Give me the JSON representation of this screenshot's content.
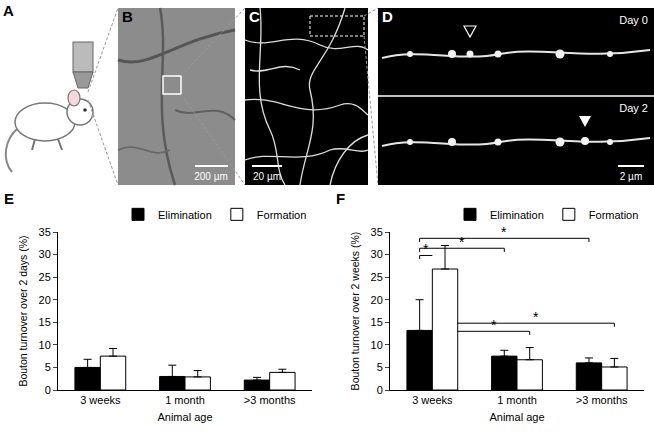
{
  "panels": {
    "A": {
      "label": "A"
    },
    "B": {
      "label": "B",
      "scale_bar": "200 µm"
    },
    "C": {
      "label": "C",
      "scale_bar": "20 µm"
    },
    "D": {
      "label": "D",
      "scale_bar": "2 µm",
      "rows": [
        "Day 0",
        "Day 2"
      ]
    }
  },
  "chart_data": [
    {
      "panel": "E",
      "type": "bar",
      "x_title": "Animal age",
      "y_title": "Bouton turnover over 2 days (%)",
      "categories": [
        "3 weeks",
        "1 month",
        ">3 months"
      ],
      "series": [
        {
          "name": "Elimination",
          "color": "#000000",
          "values": [
            5.0,
            3.0,
            2.2
          ],
          "errors": [
            1.8,
            2.5,
            0.6
          ]
        },
        {
          "name": "Formation",
          "color": "#ffffff",
          "values": [
            7.5,
            2.9,
            3.9
          ],
          "errors": [
            1.7,
            1.4,
            0.7
          ]
        }
      ],
      "ylim": [
        0,
        35
      ],
      "yticks": [
        0,
        5,
        10,
        15,
        20,
        25,
        30,
        35
      ],
      "grid": false,
      "legend": "top right"
    },
    {
      "panel": "F",
      "type": "bar",
      "x_title": "Animal age",
      "y_title": "Bouton turnover over 2 weeks (%)",
      "categories": [
        "3 weeks",
        "1 month",
        ">3 months"
      ],
      "series": [
        {
          "name": "Elimination",
          "color": "#000000",
          "values": [
            13.2,
            7.5,
            6.0
          ],
          "errors": [
            6.8,
            1.3,
            1.1
          ]
        },
        {
          "name": "Formation",
          "color": "#ffffff",
          "values": [
            26.8,
            6.7,
            5.1
          ],
          "errors": [
            5.2,
            2.7,
            1.9
          ]
        }
      ],
      "ylim": [
        0,
        35
      ],
      "yticks": [
        0,
        5,
        10,
        15,
        20,
        25,
        30,
        35
      ],
      "grid": false,
      "legend": "top right",
      "significance": [
        {
          "from": [
            "3 weeks",
            "Elimination"
          ],
          "to": [
            "3 weeks",
            "Formation"
          ],
          "y": 29.8,
          "label": "*"
        },
        {
          "from": [
            "3 weeks",
            "Elimination"
          ],
          "to": [
            "1 month",
            "Elimination"
          ],
          "y": 31.4,
          "label": "*"
        },
        {
          "from": [
            "3 weeks",
            "Elimination"
          ],
          "to": [
            ">3 months",
            "Elimination"
          ],
          "y": 33.6,
          "label": "*"
        },
        {
          "from": [
            "3 weeks",
            "Formation"
          ],
          "to": [
            "1 month",
            "Formation"
          ],
          "y": 13.0,
          "label": "*"
        },
        {
          "from": [
            "3 weeks",
            "Formation"
          ],
          "to": [
            ">3 months",
            "Formation"
          ],
          "y": 14.8,
          "label": "*"
        }
      ]
    }
  ]
}
